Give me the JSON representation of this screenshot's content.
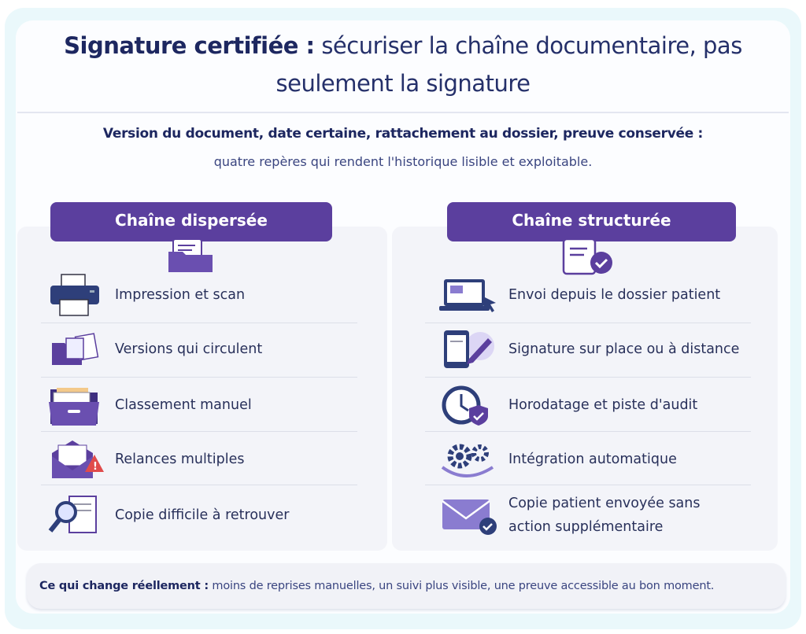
{
  "title": {
    "bold": "Signature certifiée :",
    "rest": " sécuriser la chaîne documentaire, pas",
    "line2": "seulement la signature"
  },
  "subtitle": {
    "bold": "Version du document, date certaine, rattachement au dossier, preuve conservée :",
    "line2": "quatre repères qui rendent l'historique lisible et exploitable."
  },
  "left": {
    "header": "Chaîne dispersée",
    "header_icon": "folder-icon",
    "items": [
      {
        "label": "Impression et scan",
        "icon": "printer-icon"
      },
      {
        "label": "Versions qui circulent",
        "icon": "folders-documents-icon"
      },
      {
        "label": "Classement manuel",
        "icon": "filing-drawer-icon"
      },
      {
        "label": "Relances multiples",
        "icon": "envelope-warning-icon"
      },
      {
        "label": "Copie difficile à retrouver",
        "icon": "magnifier-document-icon"
      }
    ]
  },
  "right": {
    "header": "Chaîne structurée",
    "header_icon": "document-check-icon",
    "items": [
      {
        "label": "Envoi depuis le dossier patient",
        "icon": "laptop-cursor-icon"
      },
      {
        "label": "Signature sur place ou à distance",
        "icon": "tablet-pen-icon"
      },
      {
        "label": "Horodatage et piste d'audit",
        "icon": "clock-shield-icon"
      },
      {
        "label": "Intégration automatique",
        "icon": "gears-sync-icon"
      },
      {
        "label": "Copie patient envoyée sans",
        "label2": "action supplémentaire",
        "icon": "envelope-check-icon"
      }
    ]
  },
  "footer": {
    "bold": "Ce qui change réellement :",
    "rest": " moins de reprises manuelles, un suivi plus visible, une preuve accessible au bon moment."
  },
  "colors": {
    "navy": "#1d2760",
    "purple": "#5b3f9e",
    "background": "#eaf8fb",
    "warning": "#e04b4b"
  }
}
